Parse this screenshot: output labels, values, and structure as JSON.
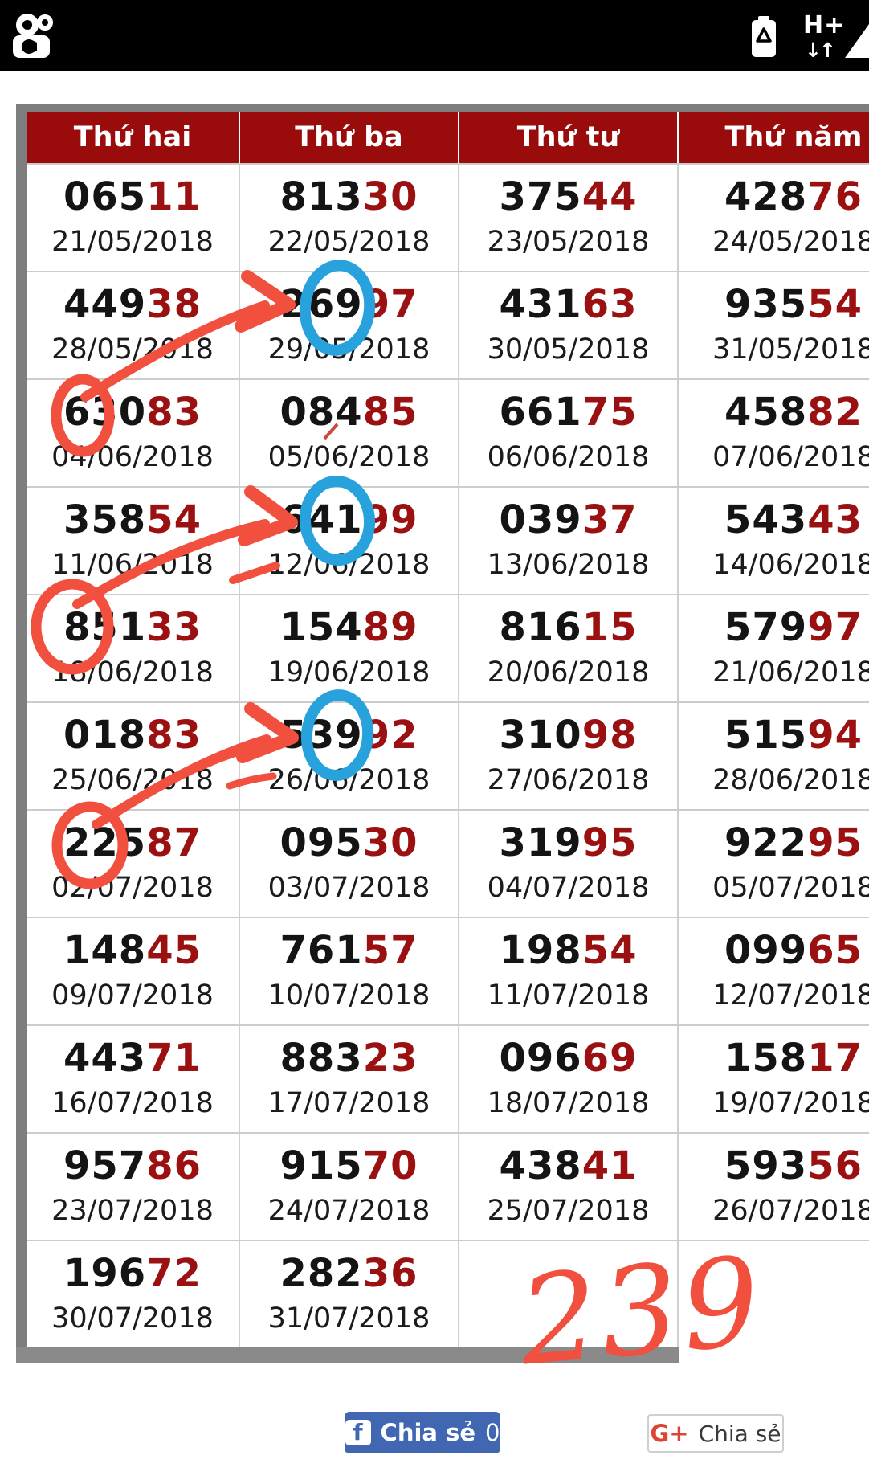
{
  "status_bar": {
    "network_type": "H+",
    "activity_arrows": "↓↑",
    "icons": [
      "kwai-app-icon",
      "battery-saver-icon",
      "signal-strength-icon"
    ]
  },
  "table": {
    "headers": [
      "Thứ hai",
      "Thứ ba",
      "Thứ tư",
      "Thứ năm"
    ],
    "rows": [
      {
        "cells": [
          {
            "b": "065",
            "r": "11",
            "date": "21/05/2018"
          },
          {
            "b": "813",
            "r": "30",
            "date": "22/05/2018"
          },
          {
            "b": "375",
            "r": "44",
            "date": "23/05/2018"
          },
          {
            "b": "428",
            "r": "76",
            "date": "24/05/2018"
          }
        ]
      },
      {
        "cells": [
          {
            "b": "449",
            "r": "38",
            "date": "28/05/2018"
          },
          {
            "b": "269",
            "r": "97",
            "date": "29/05/2018"
          },
          {
            "b": "431",
            "r": "63",
            "date": "30/05/2018"
          },
          {
            "b": "935",
            "r": "54",
            "date": "31/05/2018"
          }
        ]
      },
      {
        "cells": [
          {
            "b": "630",
            "r": "83",
            "date": "04/06/2018"
          },
          {
            "b": "084",
            "r": "85",
            "date": "05/06/2018"
          },
          {
            "b": "661",
            "r": "75",
            "date": "06/06/2018"
          },
          {
            "b": "458",
            "r": "82",
            "date": "07/06/2018"
          }
        ]
      },
      {
        "cells": [
          {
            "b": "358",
            "r": "54",
            "date": "11/06/2018"
          },
          {
            "b": "641",
            "r": "99",
            "date": "12/06/2018"
          },
          {
            "b": "039",
            "r": "37",
            "date": "13/06/2018"
          },
          {
            "b": "543",
            "r": "43",
            "date": "14/06/2018"
          }
        ]
      },
      {
        "cells": [
          {
            "b": "851",
            "r": "33",
            "date": "18/06/2018"
          },
          {
            "b": "154",
            "r": "89",
            "date": "19/06/2018"
          },
          {
            "b": "816",
            "r": "15",
            "date": "20/06/2018"
          },
          {
            "b": "579",
            "r": "97",
            "date": "21/06/2018"
          }
        ]
      },
      {
        "cells": [
          {
            "b": "018",
            "r": "83",
            "date": "25/06/2018"
          },
          {
            "b": "539",
            "r": "92",
            "date": "26/06/2018"
          },
          {
            "b": "310",
            "r": "98",
            "date": "27/06/2018"
          },
          {
            "b": "515",
            "r": "94",
            "date": "28/06/2018"
          }
        ]
      },
      {
        "cells": [
          {
            "b": "225",
            "r": "87",
            "date": "02/07/2018"
          },
          {
            "b": "095",
            "r": "30",
            "date": "03/07/2018"
          },
          {
            "b": "319",
            "r": "95",
            "date": "04/07/2018"
          },
          {
            "b": "922",
            "r": "95",
            "date": "05/07/2018"
          }
        ]
      },
      {
        "cells": [
          {
            "b": "148",
            "r": "45",
            "date": "09/07/2018"
          },
          {
            "b": "761",
            "r": "57",
            "date": "10/07/2018"
          },
          {
            "b": "198",
            "r": "54",
            "date": "11/07/2018"
          },
          {
            "b": "099",
            "r": "65",
            "date": "12/07/2018"
          }
        ]
      },
      {
        "cells": [
          {
            "b": "443",
            "r": "71",
            "date": "16/07/2018"
          },
          {
            "b": "883",
            "r": "23",
            "date": "17/07/2018"
          },
          {
            "b": "096",
            "r": "69",
            "date": "18/07/2018"
          },
          {
            "b": "158",
            "r": "17",
            "date": "19/07/2018"
          }
        ]
      },
      {
        "cells": [
          {
            "b": "957",
            "r": "86",
            "date": "23/07/2018"
          },
          {
            "b": "915",
            "r": "70",
            "date": "24/07/2018"
          },
          {
            "b": "438",
            "r": "41",
            "date": "25/07/2018"
          },
          {
            "b": "593",
            "r": "56",
            "date": "26/07/2018"
          }
        ]
      },
      {
        "cells": [
          {
            "b": "196",
            "r": "72",
            "date": "30/07/2018"
          },
          {
            "b": "282",
            "r": "36",
            "date": "31/07/2018"
          },
          null,
          null
        ]
      }
    ]
  },
  "annotation": {
    "value": "239"
  },
  "share": {
    "facebook_label": "Chia sẻ",
    "facebook_count": "0",
    "facebook_icon": "f",
    "gplus_label": "Chia sẻ",
    "gplus_icon": "G+"
  },
  "colors": {
    "header_bg": "#9a0c0c",
    "digit_black": "#141414",
    "digit_red": "#9b1111",
    "annotation_red": "#f2503f",
    "annotation_blue": "#28a2dd",
    "facebook_blue": "#4167b2",
    "gplus_red": "#db4437",
    "border_gray": "#7e7e7e"
  }
}
